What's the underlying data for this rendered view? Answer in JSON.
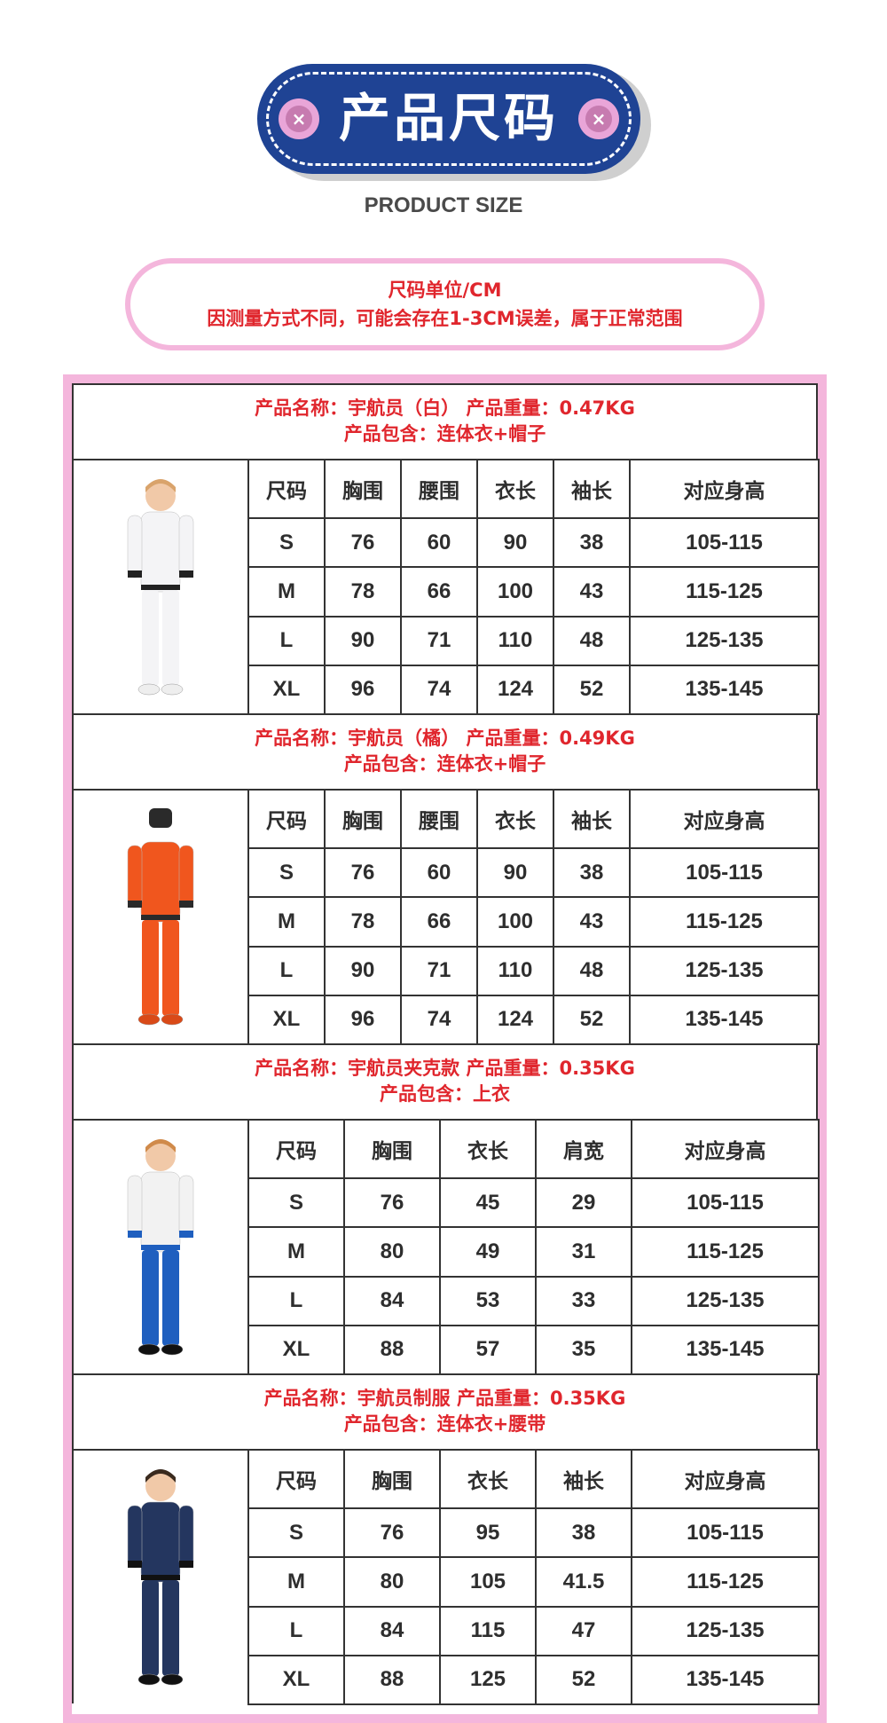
{
  "header": {
    "title": "产品尺码",
    "subtitle": "PRODUCT SIZE",
    "button_glyph": "×"
  },
  "note": {
    "line1": "尺码单位/CM",
    "line2": "因测量方式不同，可能会存在1-3CM误差，属于正常范围"
  },
  "colors": {
    "badge_blue": "#1f4394",
    "pink": "#f4b6dc",
    "red": "#e0262d"
  },
  "products": [
    {
      "line1": "产品名称：宇航员（白）   产品重量：0.47KG",
      "line2": "产品包含：连体衣+帽子",
      "image": "white-astronaut-jumpsuit",
      "columns": [
        "尺码",
        "胸围",
        "腰围",
        "衣长",
        "袖长",
        "对应身高"
      ],
      "rows": [
        [
          "S",
          "76",
          "60",
          "90",
          "38",
          "105-115"
        ],
        [
          "M",
          "78",
          "66",
          "100",
          "43",
          "115-125"
        ],
        [
          "L",
          "90",
          "71",
          "110",
          "48",
          "125-135"
        ],
        [
          "XL",
          "96",
          "74",
          "124",
          "52",
          "135-145"
        ]
      ]
    },
    {
      "line1": "产品名称：宇航员（橘）   产品重量：0.49KG",
      "line2": "产品包含：连体衣+帽子",
      "image": "orange-astronaut-jumpsuit",
      "columns": [
        "尺码",
        "胸围",
        "腰围",
        "衣长",
        "袖长",
        "对应身高"
      ],
      "rows": [
        [
          "S",
          "76",
          "60",
          "90",
          "38",
          "105-115"
        ],
        [
          "M",
          "78",
          "66",
          "100",
          "43",
          "115-125"
        ],
        [
          "L",
          "90",
          "71",
          "110",
          "48",
          "125-135"
        ],
        [
          "XL",
          "96",
          "74",
          "124",
          "52",
          "135-145"
        ]
      ]
    },
    {
      "line1": "产品名称：宇航员夹克款  产品重量：0.35KG",
      "line2": "产品包含：上衣",
      "image": "astronaut-jacket",
      "columns": [
        "尺码",
        "胸围",
        "衣长",
        "肩宽",
        "对应身高"
      ],
      "rows": [
        [
          "S",
          "76",
          "45",
          "29",
          "105-115"
        ],
        [
          "M",
          "80",
          "49",
          "31",
          "115-125"
        ],
        [
          "L",
          "84",
          "53",
          "33",
          "125-135"
        ],
        [
          "XL",
          "88",
          "57",
          "35",
          "135-145"
        ]
      ]
    },
    {
      "line1": "产品名称：宇航员制服  产品重量：0.35KG",
      "line2": "产品包含：连体衣+腰带",
      "image": "navy-astronaut-uniform",
      "columns": [
        "尺码",
        "胸围",
        "衣长",
        "袖长",
        "对应身高"
      ],
      "rows": [
        [
          "S",
          "76",
          "95",
          "38",
          "105-115"
        ],
        [
          "M",
          "80",
          "105",
          "41.5",
          "115-125"
        ],
        [
          "L",
          "84",
          "115",
          "47",
          "125-135"
        ],
        [
          "XL",
          "88",
          "125",
          "52",
          "135-145"
        ]
      ]
    }
  ]
}
